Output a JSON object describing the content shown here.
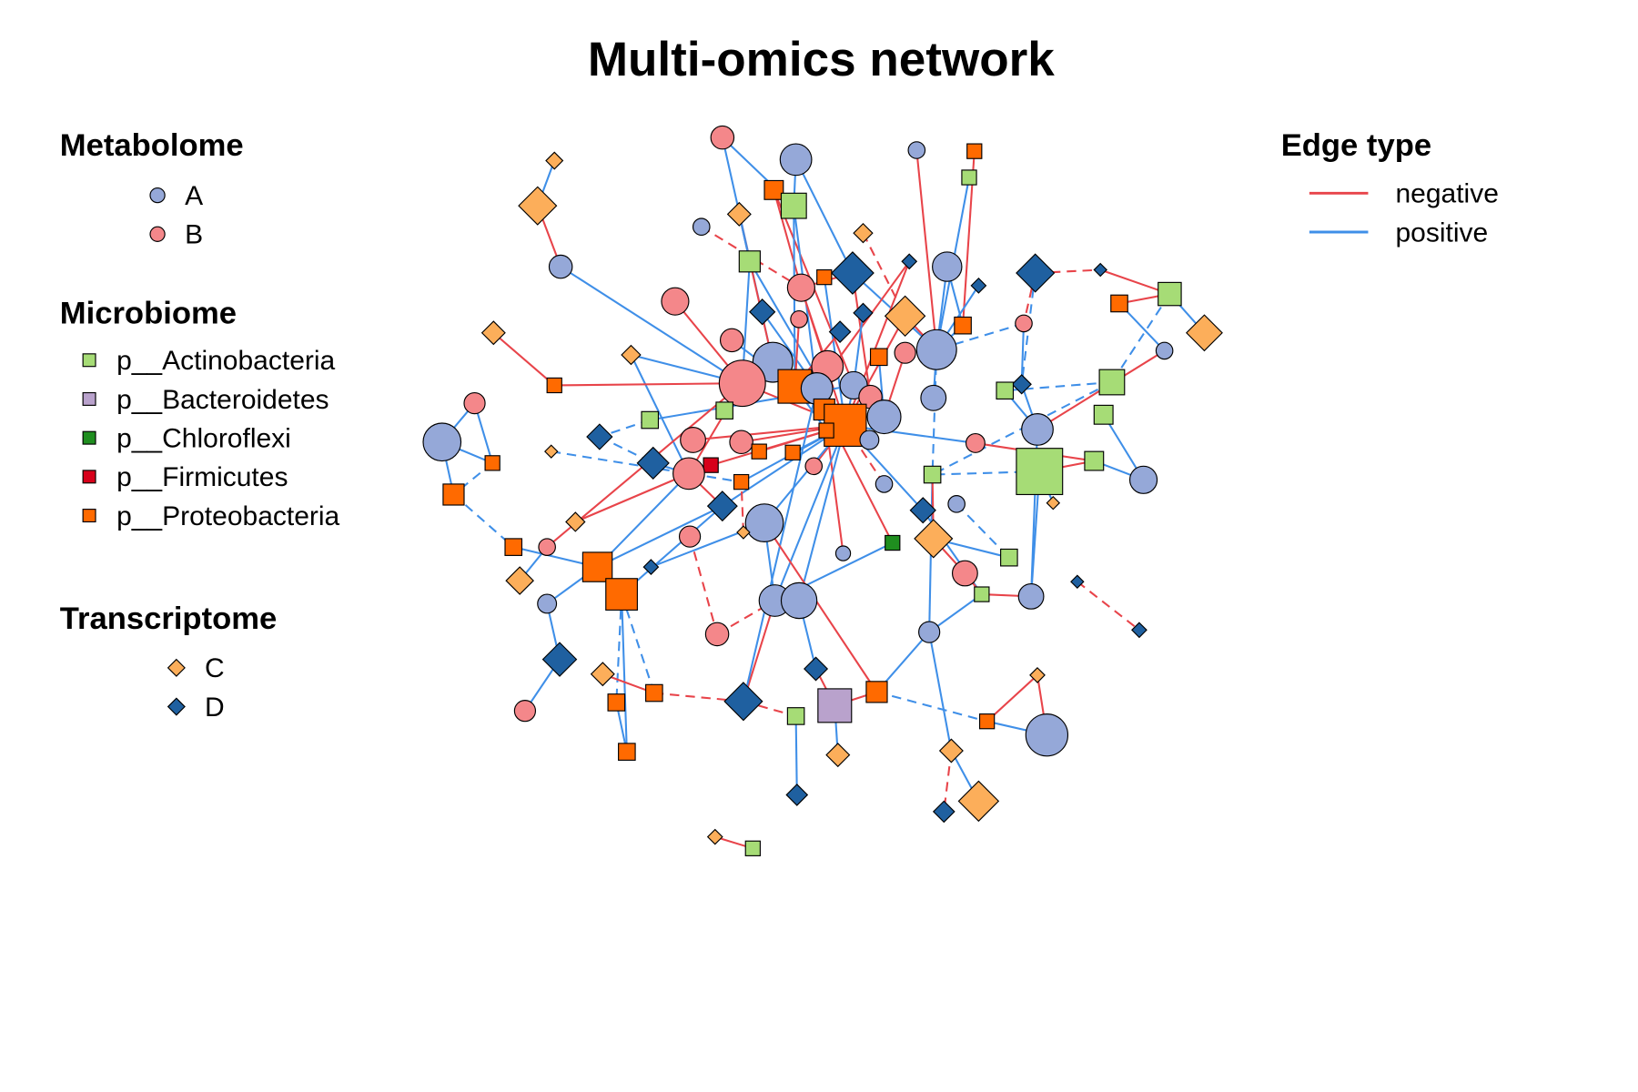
{
  "title": "Multi-omics network",
  "colors": {
    "A": "#95A8D8",
    "B": "#F4878A",
    "Act": "#A6DC76",
    "Bac": "#B9A2CC",
    "Chl": "#1F8E1F",
    "Fir": "#D7001A",
    "Pro": "#FF6A00",
    "C": "#FCAE5A",
    "D": "#1F60A0",
    "negative": "#E8444A",
    "positive": "#3F8FE8"
  },
  "legend": {
    "metabolome": {
      "heading": "Metabolome",
      "shape": "circle",
      "items": [
        {
          "key": "A",
          "label": "A"
        },
        {
          "key": "B",
          "label": "B"
        }
      ]
    },
    "microbiome": {
      "heading": "Microbiome",
      "shape": "square",
      "items": [
        {
          "key": "Act",
          "label": "p__Actinobacteria"
        },
        {
          "key": "Bac",
          "label": "p__Bacteroidetes"
        },
        {
          "key": "Chl",
          "label": "p__Chloroflexi"
        },
        {
          "key": "Fir",
          "label": "p__Firmicutes"
        },
        {
          "key": "Pro",
          "label": "p__Proteobacteria"
        }
      ]
    },
    "transcriptome": {
      "heading": "Transcriptome",
      "shape": "diamond",
      "items": [
        {
          "key": "C",
          "label": "C"
        },
        {
          "key": "D",
          "label": "D"
        }
      ]
    },
    "edges": {
      "heading": "Edge type",
      "items": [
        {
          "key": "negative",
          "label": "negative"
        },
        {
          "key": "positive",
          "label": "positive"
        }
      ]
    }
  },
  "node_groups": [
    "B",
    "A",
    "A",
    "Pro",
    "C",
    "C",
    "Act",
    "Pro",
    "Act",
    "C",
    "A",
    "C",
    "Act",
    "A",
    "D",
    "D",
    "A",
    "D",
    "D",
    "Act",
    "Pro",
    "C",
    "A",
    "B",
    "Pro",
    "D",
    "B",
    "D",
    "B",
    "D",
    "C",
    "D",
    "Pro",
    "B",
    "C",
    "C",
    "B",
    "Act",
    "A",
    "A",
    "B",
    "B",
    "Pro",
    "A",
    "A",
    "B",
    "Pro",
    "B",
    "D",
    "Act",
    "Pro",
    "B",
    "A",
    "Act",
    "Pro",
    "Pro",
    "A",
    "Act",
    "A",
    "A",
    "Act",
    "D",
    "C",
    "Pro",
    "B",
    "B",
    "Pro",
    "Pro",
    "Pro",
    "A",
    "B",
    "D",
    "Fir",
    "B",
    "B",
    "Act",
    "Act",
    "A",
    "Pro",
    "A",
    "Act",
    "Pro",
    "A",
    "C",
    "D",
    "D",
    "C",
    "A",
    "C",
    "C",
    "B",
    "Pro",
    "B",
    "Chl",
    "A",
    "Act",
    "Pro",
    "D",
    "B",
    "C",
    "D",
    "Pro",
    "A",
    "A",
    "Act",
    "A",
    "A",
    "D",
    "B",
    "A",
    "D",
    "C",
    "D",
    "C",
    "Pro",
    "Pro",
    "D",
    "Bac",
    "Pro",
    "B",
    "Act",
    "Pro",
    "A",
    "Pro",
    "C",
    "C",
    "D",
    "C",
    "D",
    "C",
    "Act"
  ],
  "edges": [
    [
      1,
      9,
      "p"
    ],
    [
      1,
      40,
      "p"
    ],
    [
      2,
      9,
      "p"
    ],
    [
      2,
      15,
      "p"
    ],
    [
      3,
      39,
      "n"
    ],
    [
      4,
      33,
      "n"
    ],
    [
      7,
      39,
      "p"
    ],
    [
      5,
      6,
      "p"
    ],
    [
      6,
      14,
      "n"
    ],
    [
      14,
      42,
      "p"
    ],
    [
      8,
      24,
      "n"
    ],
    [
      8,
      45,
      "n"
    ],
    [
      9,
      44,
      "p"
    ],
    [
      9,
      43,
      "p"
    ],
    [
      10,
      40,
      "n"
    ],
    [
      10,
      13,
      "p"
    ],
    [
      11,
      24,
      "nd"
    ],
    [
      12,
      31,
      "nd"
    ],
    [
      13,
      42,
      "p"
    ],
    [
      13,
      56,
      "p"
    ],
    [
      15,
      24,
      "n"
    ],
    [
      15,
      46,
      "n"
    ],
    [
      15,
      39,
      "p"
    ],
    [
      16,
      44,
      "n"
    ],
    [
      16,
      56,
      "n"
    ],
    [
      17,
      39,
      "p"
    ],
    [
      17,
      33,
      "p"
    ],
    [
      18,
      19,
      "nd"
    ],
    [
      18,
      34,
      "nd"
    ],
    [
      18,
      49,
      "pd"
    ],
    [
      19,
      20,
      "n"
    ],
    [
      20,
      22,
      "p"
    ],
    [
      20,
      21,
      "n"
    ],
    [
      21,
      23,
      "p"
    ],
    [
      23,
      59,
      "n"
    ],
    [
      20,
      38,
      "pd"
    ],
    [
      24,
      41,
      "n"
    ],
    [
      24,
      56,
      "n"
    ],
    [
      25,
      56,
      "p"
    ],
    [
      26,
      39,
      "p"
    ],
    [
      27,
      42,
      "n"
    ],
    [
      28,
      44,
      "p"
    ],
    [
      29,
      43,
      "n"
    ],
    [
      30,
      45,
      "p"
    ],
    [
      31,
      39,
      "n"
    ],
    [
      31,
      56,
      "n"
    ],
    [
      32,
      43,
      "n"
    ],
    [
      33,
      39,
      "p"
    ],
    [
      34,
      39,
      "pd"
    ],
    [
      34,
      49,
      "p"
    ],
    [
      35,
      51,
      "n"
    ],
    [
      36,
      42,
      "p"
    ],
    [
      36,
      74,
      "p"
    ],
    [
      37,
      56,
      "p"
    ],
    [
      38,
      50,
      "pd"
    ],
    [
      38,
      81,
      "pd"
    ],
    [
      39,
      53,
      "p"
    ],
    [
      39,
      81,
      "pd"
    ],
    [
      40,
      56,
      "n"
    ],
    [
      41,
      44,
      "n"
    ],
    [
      42,
      56,
      "n"
    ],
    [
      42,
      51,
      "n"
    ],
    [
      42,
      74,
      "n"
    ],
    [
      43,
      69,
      "p"
    ],
    [
      44,
      56,
      "p"
    ],
    [
      45,
      56,
      "p"
    ],
    [
      46,
      56,
      "n"
    ],
    [
      47,
      57,
      "p"
    ],
    [
      48,
      57,
      "n"
    ],
    [
      49,
      59,
      "p"
    ],
    [
      50,
      59,
      "p"
    ],
    [
      52,
      64,
      "p"
    ],
    [
      60,
      64,
      "p"
    ],
    [
      60,
      82,
      "p"
    ],
    [
      61,
      62,
      "pd"
    ],
    [
      61,
      45,
      "p"
    ],
    [
      62,
      72,
      "pd"
    ],
    [
      63,
      79,
      "pd"
    ],
    [
      64,
      82,
      "pd"
    ],
    [
      65,
      56,
      "n"
    ],
    [
      66,
      56,
      "n"
    ],
    [
      67,
      56,
      "n"
    ],
    [
      68,
      56,
      "p"
    ],
    [
      69,
      56,
      "n"
    ],
    [
      70,
      56,
      "p"
    ],
    [
      71,
      56,
      "p"
    ],
    [
      71,
      77,
      "n"
    ],
    [
      72,
      74,
      "p"
    ],
    [
      73,
      56,
      "n"
    ],
    [
      74,
      85,
      "n"
    ],
    [
      74,
      97,
      "p"
    ],
    [
      75,
      56,
      "n"
    ],
    [
      76,
      81,
      "pd"
    ],
    [
      76,
      77,
      "n"
    ],
    [
      76,
      106,
      "p"
    ],
    [
      77,
      78,
      "p"
    ],
    [
      78,
      58,
      "p"
    ],
    [
      79,
      56,
      "p"
    ],
    [
      80,
      56,
      "nd"
    ],
    [
      81,
      110,
      "p"
    ],
    [
      82,
      92,
      "pd"
    ],
    [
      83,
      96,
      "pd"
    ],
    [
      84,
      76,
      "pd"
    ],
    [
      85,
      56,
      "p"
    ],
    [
      85,
      102,
      "p"
    ],
    [
      86,
      56,
      "p"
    ],
    [
      86,
      105,
      "p"
    ],
    [
      87,
      74,
      "n"
    ],
    [
      88,
      56,
      "p"
    ],
    [
      88,
      103,
      "p"
    ],
    [
      89,
      81,
      "n"
    ],
    [
      89,
      99,
      "n"
    ],
    [
      90,
      79,
      "nd"
    ],
    [
      91,
      109,
      "nd"
    ],
    [
      92,
      97,
      "p"
    ],
    [
      93,
      100,
      "p"
    ],
    [
      93,
      42,
      "n"
    ],
    [
      94,
      55,
      "n"
    ],
    [
      94,
      103,
      "p"
    ],
    [
      95,
      55,
      "n"
    ],
    [
      96,
      89,
      "p"
    ],
    [
      97,
      102,
      "pd"
    ],
    [
      97,
      85,
      "p"
    ],
    [
      98,
      88,
      "p"
    ],
    [
      99,
      105,
      "n"
    ],
    [
      101,
      108,
      "nd"
    ],
    [
      102,
      116,
      "pd"
    ],
    [
      102,
      124,
      "p"
    ],
    [
      102,
      115,
      "pd"
    ],
    [
      103,
      56,
      "p"
    ],
    [
      104,
      113,
      "p"
    ],
    [
      104,
      56,
      "p"
    ],
    [
      105,
      106,
      "n"
    ],
    [
      106,
      59,
      "p"
    ],
    [
      107,
      97,
      "p"
    ],
    [
      107,
      111,
      "p"
    ],
    [
      109,
      103,
      "nd"
    ],
    [
      110,
      105,
      "p"
    ],
    [
      110,
      119,
      "p"
    ],
    [
      110,
      126,
      "p"
    ],
    [
      111,
      120,
      "p"
    ],
    [
      112,
      115,
      "n"
    ],
    [
      113,
      118,
      "n"
    ],
    [
      115,
      117,
      "nd"
    ],
    [
      116,
      124,
      "p"
    ],
    [
      117,
      121,
      "nd"
    ],
    [
      117,
      103,
      "n"
    ],
    [
      118,
      119,
      "n"
    ],
    [
      118,
      125,
      "p"
    ],
    [
      119,
      122,
      "pd"
    ],
    [
      121,
      127,
      "p"
    ],
    [
      122,
      123,
      "p"
    ],
    [
      122,
      114,
      "n"
    ],
    [
      114,
      123,
      "n"
    ],
    [
      126,
      128,
      "p"
    ],
    [
      126,
      129,
      "nd"
    ],
    [
      130,
      131,
      "n"
    ],
    [
      117,
      44,
      "p"
    ],
    [
      119,
      88,
      "n"
    ],
    [
      52,
      60,
      "p"
    ]
  ]
}
